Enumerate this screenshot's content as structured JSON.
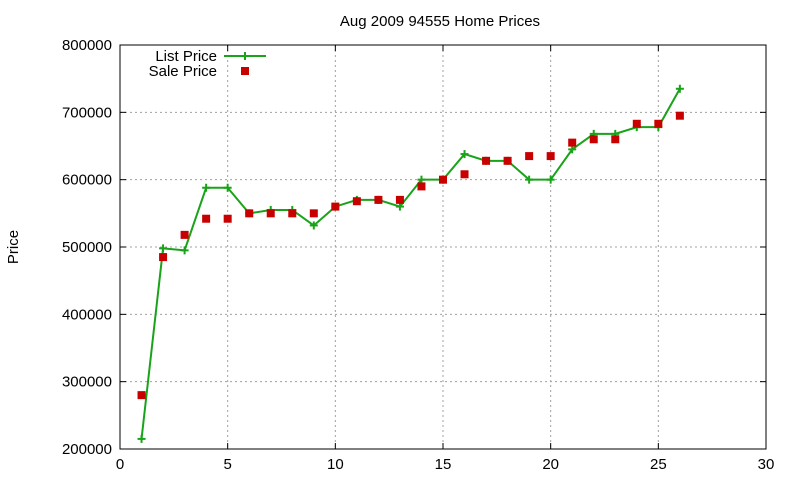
{
  "chart_data": {
    "type": "line",
    "title": "Aug 2009 94555 Home Prices",
    "xlabel": "",
    "ylabel": "Price",
    "xlim": [
      0,
      30
    ],
    "ylim": [
      200000,
      800000
    ],
    "xticks": [
      "0",
      "5",
      "10",
      "15",
      "20",
      "25",
      "30"
    ],
    "yticks": [
      "200000",
      "300000",
      "400000",
      "500000",
      "600000",
      "700000",
      "800000"
    ],
    "grid": true,
    "legend_position": "top-left",
    "series": [
      {
        "name": "List Price",
        "style": "line-with-plus-markers",
        "color": "#19a319",
        "x": [
          1,
          2,
          3,
          4,
          5,
          6,
          7,
          8,
          9,
          10,
          11,
          12,
          13,
          14,
          15,
          16,
          17,
          18,
          19,
          20,
          21,
          22,
          23,
          24,
          25,
          26
        ],
        "y": [
          215000,
          498000,
          495000,
          588000,
          588000,
          550000,
          555000,
          555000,
          532000,
          560000,
          570000,
          570000,
          560000,
          600000,
          600000,
          638000,
          628000,
          628000,
          600000,
          600000,
          645000,
          668000,
          668000,
          678000,
          678000,
          735000
        ]
      },
      {
        "name": "Sale Price",
        "style": "square-markers",
        "color": "#c80000",
        "x": [
          1,
          2,
          3,
          4,
          5,
          6,
          7,
          8,
          9,
          10,
          11,
          12,
          13,
          14,
          15,
          16,
          17,
          18,
          19,
          20,
          21,
          22,
          23,
          24,
          25,
          26
        ],
        "y": [
          280000,
          485000,
          518000,
          542000,
          542000,
          550000,
          550000,
          550000,
          550000,
          560000,
          568000,
          570000,
          570000,
          590000,
          600000,
          608000,
          628000,
          628000,
          635000,
          635000,
          655000,
          660000,
          660000,
          683000,
          683000,
          695000
        ]
      }
    ]
  }
}
